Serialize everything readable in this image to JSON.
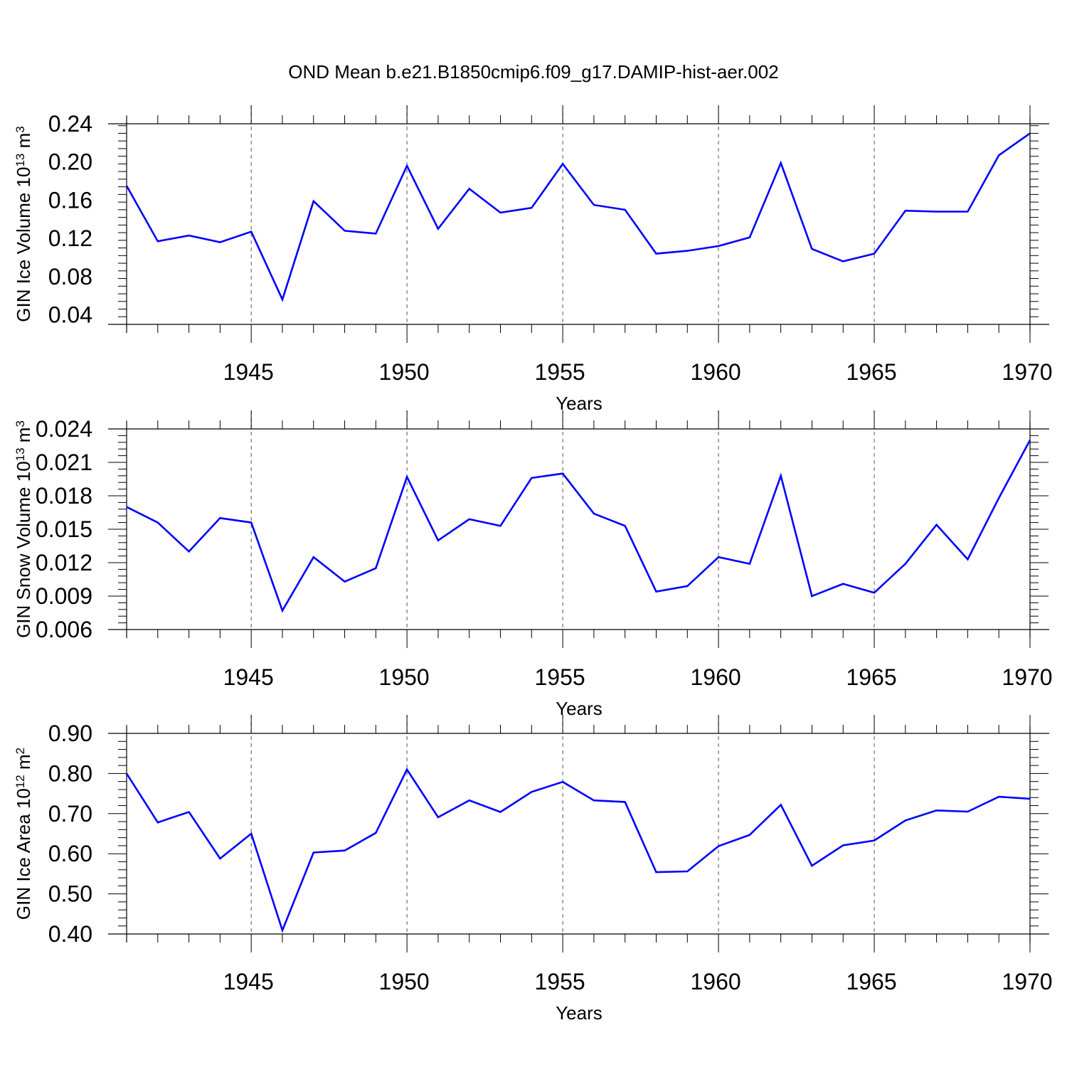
{
  "title": "OND Mean b.e21.B1850cmip6.f09_g17.DAMIP-hist-aer.002",
  "colors": {
    "line": "#0000ff",
    "axis": "#000000",
    "grid": "#555555",
    "background": "#ffffff"
  },
  "chart_data": [
    {
      "type": "line",
      "ylabel": {
        "base": "GIN Ice Volume 10",
        "exp": "13",
        "unit": " m",
        "unit_exp": "3"
      },
      "xlabel": "Years",
      "xlim": [
        1941,
        1970
      ],
      "ylim": [
        0.03,
        0.24
      ],
      "xticks": [
        1945,
        1950,
        1955,
        1960,
        1965,
        1970
      ],
      "xtick_labels": [
        "1945",
        "1950",
        "1955",
        "1960",
        "1965",
        "1970"
      ],
      "yticks": [
        0.04,
        0.08,
        0.12,
        0.16,
        0.2,
        0.24
      ],
      "ytick_labels": [
        "0.04",
        "0.08",
        "0.12",
        "0.16",
        "0.20",
        "0.24"
      ],
      "grid": "vertical dashed at major x ticks",
      "x": [
        1941,
        1942,
        1943,
        1944,
        1945,
        1946,
        1947,
        1948,
        1949,
        1950,
        1951,
        1952,
        1953,
        1954,
        1955,
        1956,
        1957,
        1958,
        1959,
        1960,
        1961,
        1962,
        1963,
        1964,
        1965,
        1966,
        1967,
        1968,
        1969,
        1970
      ],
      "series": [
        {
          "values": [
            0.175,
            0.117,
            0.123,
            0.116,
            0.127,
            0.056,
            0.159,
            0.128,
            0.125,
            0.196,
            0.13,
            0.172,
            0.147,
            0.152,
            0.198,
            0.155,
            0.15,
            0.104,
            0.107,
            0.112,
            0.121,
            0.199,
            0.109,
            0.096,
            0.104,
            0.149,
            0.148,
            0.148,
            0.207,
            0.23
          ]
        }
      ]
    },
    {
      "type": "line",
      "ylabel": {
        "base": "GIN Snow Volume 10",
        "exp": "13",
        "unit": " m",
        "unit_exp": "3"
      },
      "xlabel": "Years",
      "xlim": [
        1941,
        1970
      ],
      "ylim": [
        0.006,
        0.024
      ],
      "xticks": [
        1945,
        1950,
        1955,
        1960,
        1965,
        1970
      ],
      "xtick_labels": [
        "1945",
        "1950",
        "1955",
        "1960",
        "1965",
        "1970"
      ],
      "yticks": [
        0.006,
        0.009,
        0.012,
        0.015,
        0.018,
        0.021,
        0.024
      ],
      "ytick_labels": [
        "0.006",
        "0.009",
        "0.012",
        "0.015",
        "0.018",
        "0.021",
        "0.024"
      ],
      "grid": "vertical dashed at major x ticks",
      "x": [
        1941,
        1942,
        1943,
        1944,
        1945,
        1946,
        1947,
        1948,
        1949,
        1950,
        1951,
        1952,
        1953,
        1954,
        1955,
        1956,
        1957,
        1958,
        1959,
        1960,
        1961,
        1962,
        1963,
        1964,
        1965,
        1966,
        1967,
        1968,
        1969,
        1970
      ],
      "series": [
        {
          "values": [
            0.017,
            0.0156,
            0.013,
            0.016,
            0.0156,
            0.0077,
            0.0125,
            0.0103,
            0.0115,
            0.0197,
            0.014,
            0.0159,
            0.0153,
            0.0196,
            0.02,
            0.0164,
            0.0153,
            0.0094,
            0.0099,
            0.0125,
            0.0119,
            0.0198,
            0.009,
            0.0101,
            0.0093,
            0.0119,
            0.0154,
            0.0123,
            0.0178,
            0.023
          ]
        }
      ]
    },
    {
      "type": "line",
      "ylabel": {
        "base": "GIN Ice Area 10",
        "exp": "12",
        "unit": " m",
        "unit_exp": "2"
      },
      "xlabel": "Years",
      "xlim": [
        1941,
        1970
      ],
      "ylim": [
        0.4,
        0.9
      ],
      "xticks": [
        1945,
        1950,
        1955,
        1960,
        1965,
        1970
      ],
      "xtick_labels": [
        "1945",
        "1950",
        "1955",
        "1960",
        "1965",
        "1970"
      ],
      "yticks": [
        0.4,
        0.5,
        0.6,
        0.7,
        0.8,
        0.9
      ],
      "ytick_labels": [
        "0.40",
        "0.50",
        "0.60",
        "0.70",
        "0.80",
        "0.90"
      ],
      "grid": "vertical dashed at major x ticks",
      "x": [
        1941,
        1942,
        1943,
        1944,
        1945,
        1946,
        1947,
        1948,
        1949,
        1950,
        1951,
        1952,
        1953,
        1954,
        1955,
        1956,
        1957,
        1958,
        1959,
        1960,
        1961,
        1962,
        1963,
        1964,
        1965,
        1966,
        1967,
        1968,
        1969,
        1970
      ],
      "series": [
        {
          "values": [
            0.8,
            0.678,
            0.704,
            0.588,
            0.65,
            0.409,
            0.603,
            0.608,
            0.652,
            0.81,
            0.691,
            0.733,
            0.704,
            0.754,
            0.779,
            0.733,
            0.729,
            0.554,
            0.556,
            0.619,
            0.647,
            0.722,
            0.57,
            0.621,
            0.633,
            0.683,
            0.708,
            0.705,
            0.742,
            0.737
          ]
        }
      ]
    }
  ]
}
